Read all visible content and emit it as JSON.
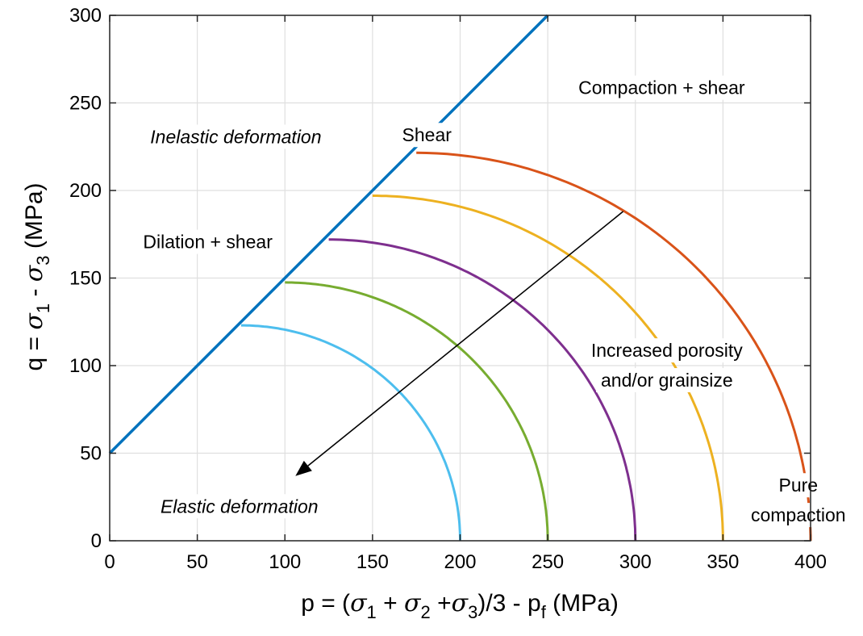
{
  "chart_data": {
    "type": "line",
    "xlim": [
      0,
      400
    ],
    "ylim": [
      0,
      300
    ],
    "x_ticks": [
      0,
      50,
      100,
      150,
      200,
      250,
      300,
      350,
      400
    ],
    "y_ticks": [
      0,
      50,
      100,
      150,
      200,
      250,
      300
    ],
    "grid": true,
    "xlabel": {
      "prefix": "p = (",
      "s1": "σ",
      "s1_sub": "1",
      "plus1": " + ",
      "s2": "σ",
      "s2_sub": "2",
      "plus2": " +",
      "s3": "σ",
      "s3_sub": "3",
      "mid": ")/3 - p",
      "pf_sub": "f",
      "unit": " (MPa)"
    },
    "ylabel": {
      "prefix": "q = ",
      "s1": "σ",
      "s1_sub": "1",
      "minus": " - ",
      "s3": "σ",
      "s3_sub": "3",
      "unit": " (MPa)"
    },
    "shear_line": {
      "color": "#0072BD",
      "x": [
        0,
        250
      ],
      "y": [
        50,
        300
      ]
    },
    "series": [
      {
        "color": "#4DBEEE",
        "x_start": 75,
        "x_end": 200,
        "q_peak": 123
      },
      {
        "color": "#77AC30",
        "x_start": 100,
        "x_end": 250,
        "q_peak": 147.5
      },
      {
        "color": "#7E2F8E",
        "x_start": 125,
        "x_end": 300,
        "q_peak": 172
      },
      {
        "color": "#EDB120",
        "x_start": 150,
        "x_end": 350,
        "q_peak": 197
      },
      {
        "color": "#D95319",
        "x_start": 175,
        "x_end": 400,
        "q_peak": 221.5
      }
    ],
    "arrow": {
      "from": [
        293,
        188
      ],
      "to": [
        106,
        37
      ],
      "color": "#000000"
    },
    "annotations": {
      "inelastic": "Inelastic deformation",
      "shear": "Shear",
      "compaction_shear": "Compaction + shear",
      "dilation_shear": "Dilation + shear",
      "increased_line1": "Increased porosity",
      "increased_line2": "and/or grainsize",
      "elastic": "Elastic deformation",
      "pure_line1": "Pure",
      "pure_line2": "compaction"
    }
  }
}
